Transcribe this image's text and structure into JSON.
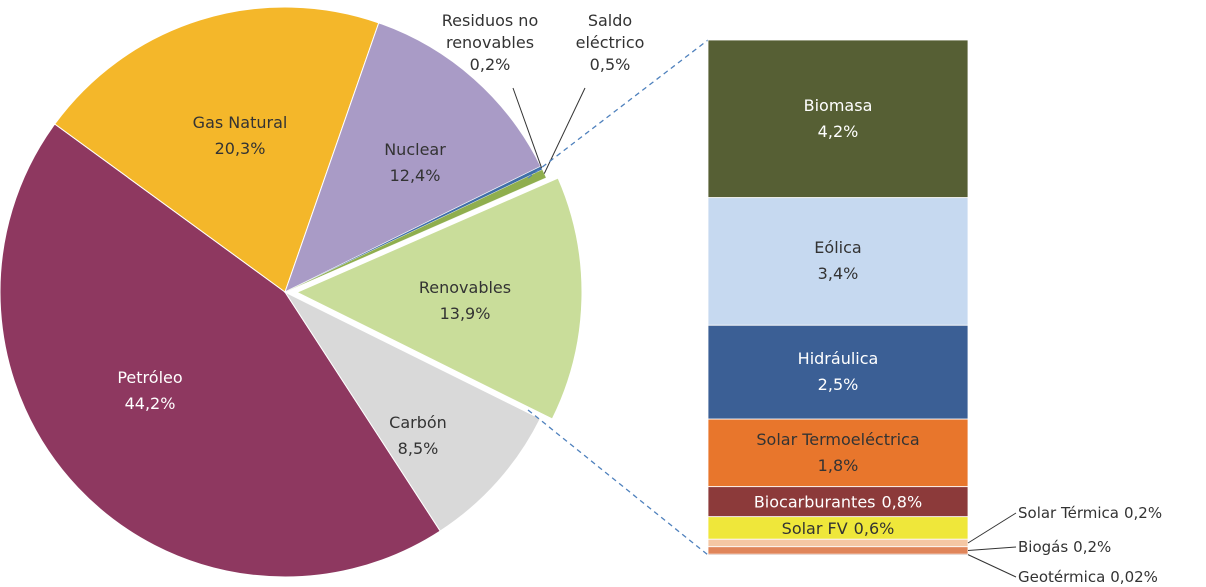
{
  "chart_data": [
    {
      "type": "pie",
      "categories": [
        "Petróleo",
        "Gas Natural",
        "Nuclear",
        "Residuos no renovables",
        "Saldo eléctrico",
        "Renovables",
        "Carbón"
      ],
      "values": [
        44.2,
        20.3,
        12.4,
        0.2,
        0.5,
        13.9,
        8.5
      ],
      "value_labels": [
        "44,2%",
        "20,3%",
        "12,4%",
        "0,2%",
        "0,5%",
        "13,9%",
        "8,5%"
      ],
      "colors": [
        "#8e3860",
        "#f4b72a",
        "#a99bc6",
        "#3f6fa8",
        "#8fae4e",
        "#c9dd9a",
        "#d9d9d9"
      ]
    },
    {
      "type": "bar",
      "categories": [
        "Biomasa",
        "Eólica",
        "Hidráulica",
        "Solar Termoeléctrica",
        "Biocarburantes",
        "Solar FV",
        "Solar Térmica",
        "Biogás",
        "Geotérmica"
      ],
      "values": [
        4.2,
        3.4,
        2.5,
        1.8,
        0.8,
        0.6,
        0.2,
        0.2,
        0.02
      ],
      "value_labels": [
        "4,2%",
        "3,4%",
        "2,5%",
        "1,8%",
        "0,8%",
        "0,6%",
        "0,2%",
        "0,2%",
        "0,02%"
      ],
      "colors": [
        "#565f34",
        "#c6d9f0",
        "#3b5f95",
        "#e8762c",
        "#8c3a3a",
        "#efe73a",
        "#f5c7a4",
        "#e0855a",
        "#8b3a1f"
      ]
    }
  ]
}
